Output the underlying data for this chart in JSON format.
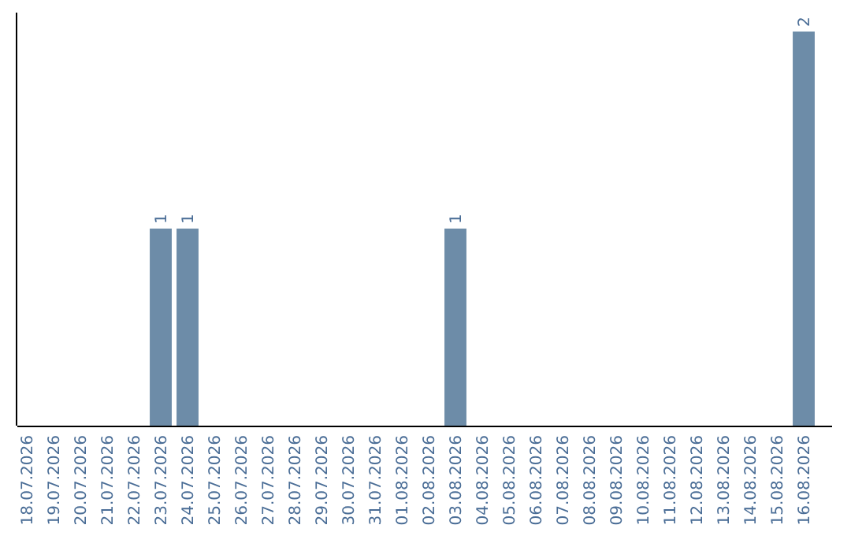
{
  "chart_data": {
    "type": "bar",
    "categories": [
      "18.07.2026",
      "19.07.2026",
      "20.07.2026",
      "21.07.2026",
      "22.07.2026",
      "23.07.2026",
      "24.07.2026",
      "25.07.2026",
      "26.07.2026",
      "27.07.2026",
      "28.07.2026",
      "29.07.2026",
      "30.07.2026",
      "31.07.2026",
      "01.08.2026",
      "02.08.2026",
      "03.08.2026",
      "04.08.2026",
      "05.08.2026",
      "06.08.2026",
      "07.08.2026",
      "08.08.2026",
      "09.08.2026",
      "10.08.2026",
      "11.08.2026",
      "12.08.2026",
      "13.08.2026",
      "14.08.2026",
      "15.08.2026",
      "16.08.2026"
    ],
    "values": [
      0,
      0,
      0,
      0,
      0,
      1,
      1,
      0,
      0,
      0,
      0,
      0,
      0,
      0,
      0,
      0,
      1,
      0,
      0,
      0,
      0,
      0,
      0,
      0,
      0,
      0,
      0,
      0,
      0,
      2
    ],
    "value_labels": [
      null,
      null,
      null,
      null,
      null,
      "1",
      "1",
      null,
      null,
      null,
      null,
      null,
      null,
      null,
      null,
      null,
      "1",
      null,
      null,
      null,
      null,
      null,
      null,
      null,
      null,
      null,
      null,
      null,
      null,
      "2"
    ],
    "color": "#6d8ca8"
  }
}
